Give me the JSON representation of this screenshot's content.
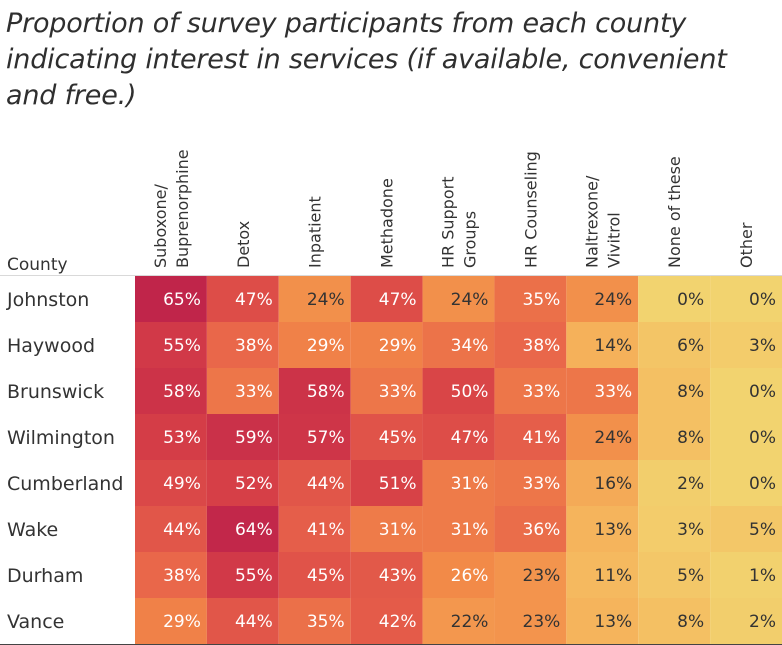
{
  "chart_data": {
    "type": "heatmap",
    "title": "Proportion of survey participants from each county indicating interest in services (if available, convenient and free.)",
    "row_axis_title": "County",
    "columns": [
      [
        "Suboxone/",
        "Buprenorphine"
      ],
      [
        "Detox"
      ],
      [
        "Inpatient"
      ],
      [
        "Methadone"
      ],
      [
        "HR Support",
        "Groups"
      ],
      [
        "HR Counseling"
      ],
      [
        "Naltrexone/",
        "Vivitrol"
      ],
      [
        "None of these"
      ],
      [
        "Other"
      ]
    ],
    "rows": [
      "Johnston",
      "Haywood",
      "Brunswick",
      "Wilmington",
      "Cumberland",
      "Wake",
      "Durham",
      "Vance"
    ],
    "values": [
      [
        65,
        47,
        24,
        47,
        24,
        35,
        24,
        0,
        0
      ],
      [
        55,
        38,
        29,
        29,
        34,
        38,
        14,
        6,
        3
      ],
      [
        58,
        33,
        58,
        33,
        50,
        33,
        33,
        8,
        0
      ],
      [
        53,
        59,
        57,
        45,
        47,
        41,
        24,
        8,
        0
      ],
      [
        49,
        52,
        44,
        51,
        31,
        33,
        16,
        2,
        0
      ],
      [
        44,
        64,
        41,
        31,
        31,
        36,
        13,
        3,
        5
      ],
      [
        38,
        55,
        45,
        43,
        26,
        23,
        11,
        5,
        1
      ],
      [
        29,
        44,
        35,
        42,
        22,
        23,
        13,
        8,
        2
      ]
    ],
    "value_suffix": "%",
    "color_scale": [
      "#f2d36f",
      "#f5b45c",
      "#f28a48",
      "#e8644a",
      "#d63f47",
      "#c0254a"
    ],
    "value_range": [
      0,
      65
    ]
  }
}
